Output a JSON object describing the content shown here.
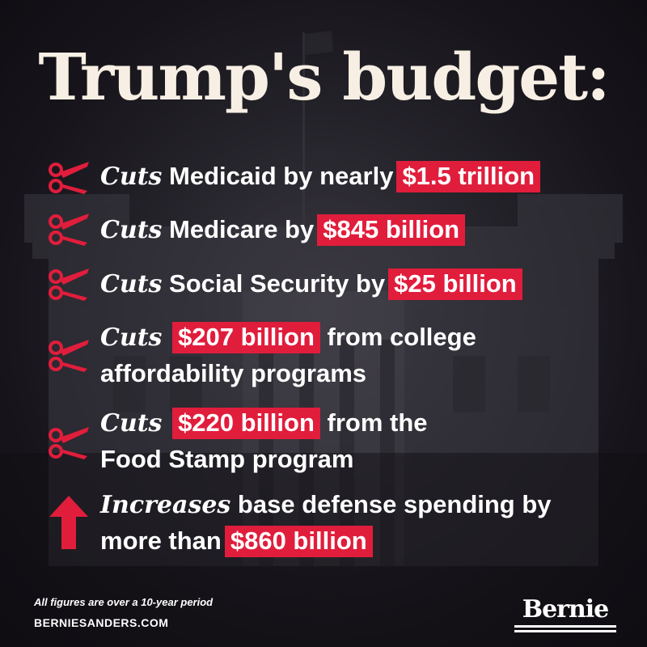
{
  "title": "Trump's budget:",
  "items": [
    {
      "icon": "scissors-icon",
      "verb": "Cuts",
      "before": " Medicaid by nearly",
      "highlight": "$1.5 trillion",
      "after": "",
      "line2": ""
    },
    {
      "icon": "scissors-icon",
      "verb": "Cuts",
      "before": " Medicare by",
      "highlight": "$845 billion",
      "after": "",
      "line2": ""
    },
    {
      "icon": "scissors-icon",
      "verb": "Cuts",
      "before": " Social Security by",
      "highlight": "$25 billion",
      "after": "",
      "line2": ""
    },
    {
      "icon": "scissors-icon",
      "verb": "Cuts",
      "before": " ",
      "highlight": "$207 billion",
      "after": " from college",
      "line2": "affordability programs"
    },
    {
      "icon": "scissors-icon",
      "verb": "Cuts",
      "before": " ",
      "highlight": "$220 billion",
      "after": " from the",
      "line2": "Food Stamp program"
    },
    {
      "icon": "arrow-up-icon",
      "verb": "Increases",
      "before": " base defense spending by",
      "highlight": "",
      "after": "",
      "line2_before": "more than",
      "line2_highlight": "$860 billion"
    }
  ],
  "footer": {
    "note": "All figures are over a 10-year period",
    "url": "BERNIESANDERS.COM"
  },
  "logo": "Bernie",
  "colors": {
    "highlight": "#e11d3c",
    "title": "#f8efe4",
    "background": "#17151b"
  }
}
